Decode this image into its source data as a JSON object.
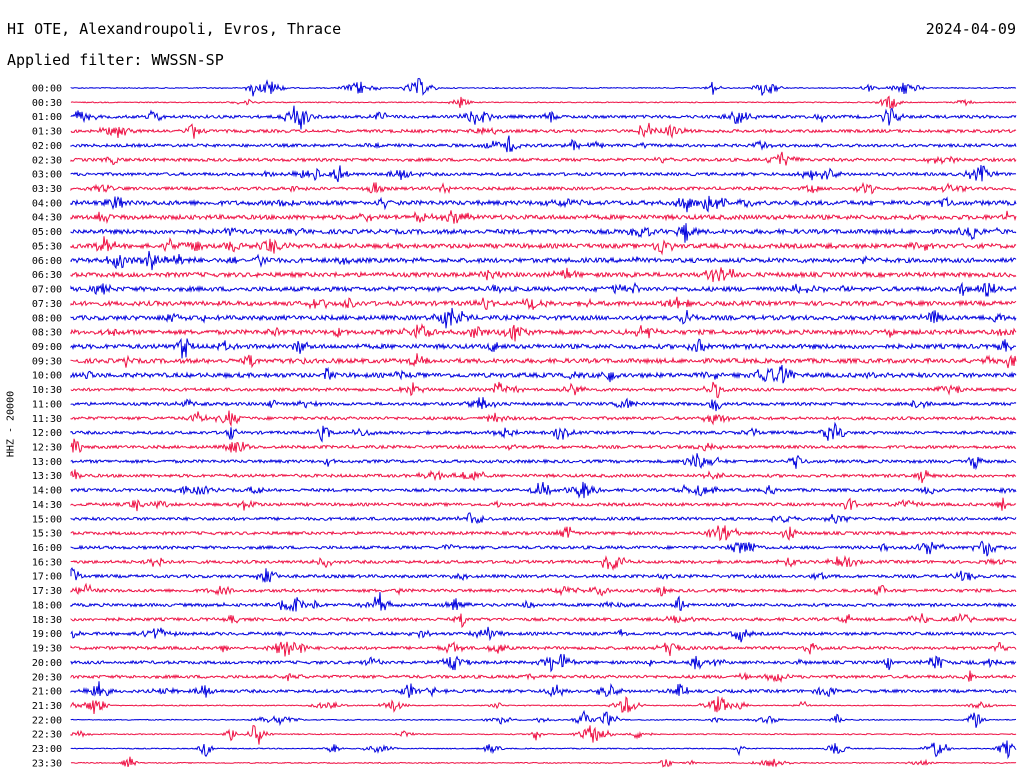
{
  "header": {
    "station": "HI OTE, Alexandroupoli, Evros, Thrace",
    "date": "2024-04-09",
    "filter": "Applied filter: WWSSN-SP"
  },
  "colors": {
    "trace_a": "#0000dd",
    "trace_b": "#ee1144"
  },
  "chart_data": {
    "type": "line",
    "title": "HI OTE, Alexandroupoli, Evros, Thrace",
    "ylabel": "HHZ - 20000",
    "xlabel": "",
    "y_tick_labels": [
      "00:00",
      "00:30",
      "01:00",
      "01:30",
      "02:00",
      "02:30",
      "03:00",
      "03:30",
      "04:00",
      "04:30",
      "05:00",
      "05:30",
      "06:00",
      "06:30",
      "07:00",
      "07:30",
      "08:00",
      "08:30",
      "09:00",
      "09:30",
      "10:00",
      "10:30",
      "11:00",
      "11:30",
      "12:00",
      "12:30",
      "13:00",
      "13:30",
      "14:00",
      "14:30",
      "15:00",
      "15:30",
      "16:00",
      "16:30",
      "17:00",
      "17:30",
      "18:00",
      "18:30",
      "19:00",
      "19:30",
      "20:00",
      "20:30",
      "21:00",
      "21:30",
      "22:00",
      "22:30",
      "23:00",
      "23:30"
    ],
    "trace_colors": [
      "#0000dd",
      "#ee1144"
    ],
    "trace_minutes": 30,
    "grid": false
  }
}
